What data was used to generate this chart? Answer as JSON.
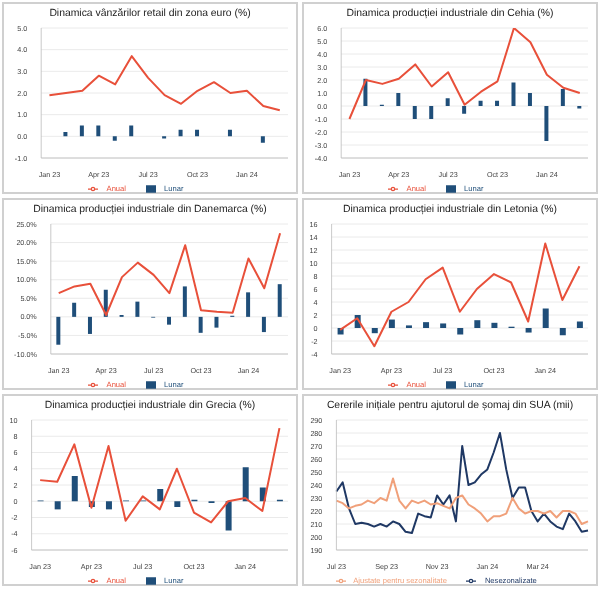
{
  "chart_data": [
    {
      "type": "bar",
      "title": "Dinamica vânzărilor retail din zona euro (%)",
      "categories": [
        "Jan 23",
        null,
        null,
        "Apr 23",
        null,
        null,
        "Jul 23",
        null,
        null,
        "Oct 23",
        null,
        null,
        "Jan 24",
        null,
        null
      ],
      "ylim": [
        -1,
        5
      ],
      "yticks": [
        {
          "value": -1,
          "label": "-1.0"
        },
        {
          "value": 0,
          "label": "0.0"
        },
        {
          "value": 1,
          "label": "1.0"
        },
        {
          "value": 2,
          "label": "2.0"
        },
        {
          "value": 3,
          "label": "3.0"
        },
        {
          "value": 4,
          "label": "4.0"
        },
        {
          "value": 5,
          "label": "5.0"
        }
      ],
      "grid": "y",
      "legend": "bottom",
      "series": [
        {
          "name": "Lunar",
          "type": "bar",
          "color": "#1f4e79",
          "values": [
            0.0,
            0.2,
            0.5,
            0.5,
            -0.2,
            0.5,
            0.0,
            -0.1,
            0.3,
            0.3,
            0.0,
            0.3,
            0.0,
            -0.3,
            0.0
          ]
        },
        {
          "name": "Anual",
          "type": "line",
          "color": "#e8503a",
          "values": [
            1.9,
            2.0,
            2.1,
            2.8,
            2.4,
            3.7,
            2.7,
            1.9,
            1.5,
            2.1,
            2.5,
            2.0,
            2.1,
            1.4,
            1.2
          ]
        }
      ]
    },
    {
      "type": "bar",
      "title": "Dinamica producției industriale din Cehia (%)",
      "categories": [
        "Jan 23",
        null,
        null,
        "Apr 23",
        null,
        null,
        "Jul 23",
        null,
        null,
        "Oct 23",
        null,
        null,
        "Jan 24",
        null,
        null
      ],
      "ylim": [
        -4,
        6
      ],
      "yticks": [
        {
          "value": -4,
          "label": "-4.0"
        },
        {
          "value": -3,
          "label": "-3.0"
        },
        {
          "value": -2,
          "label": "-2.0"
        },
        {
          "value": -1,
          "label": "-1.0"
        },
        {
          "value": 0,
          "label": "0.0"
        },
        {
          "value": 1,
          "label": "1.0"
        },
        {
          "value": 2,
          "label": "2.0"
        },
        {
          "value": 3,
          "label": "3.0"
        },
        {
          "value": 4,
          "label": "4.0"
        },
        {
          "value": 5,
          "label": "5.0"
        },
        {
          "value": 6,
          "label": "6.0"
        }
      ],
      "grid": "y",
      "legend": "bottom",
      "series": [
        {
          "name": "Lunar",
          "type": "bar",
          "color": "#1f4e79",
          "values": [
            null,
            2.1,
            0.1,
            1.0,
            -1.0,
            -1.0,
            0.6,
            -0.6,
            0.4,
            0.4,
            1.8,
            1.0,
            -2.7,
            1.3,
            -0.2
          ]
        },
        {
          "name": "Anual",
          "type": "line",
          "color": "#e8503a",
          "values": [
            -1.0,
            2.0,
            1.7,
            2.1,
            3.2,
            1.5,
            2.6,
            0.1,
            1.1,
            1.9,
            6.0,
            4.9,
            2.4,
            1.4,
            1.0
          ]
        }
      ]
    },
    {
      "type": "bar",
      "title": "Dinamica producției industriale din Danemarca (%)",
      "categories": [
        "Jan 23",
        null,
        null,
        "Apr 23",
        null,
        null,
        "Jul 23",
        null,
        null,
        "Oct 23",
        null,
        null,
        "Jan 24",
        null,
        null
      ],
      "ylim": [
        -10,
        25
      ],
      "yticks": [
        {
          "value": -10,
          "label": "-10.0%"
        },
        {
          "value": -5,
          "label": "-5.0%"
        },
        {
          "value": 0,
          "label": "0.0%"
        },
        {
          "value": 5,
          "label": "5.0%"
        },
        {
          "value": 10,
          "label": "10.0%"
        },
        {
          "value": 15,
          "label": "15.0%"
        },
        {
          "value": 20,
          "label": "20.0%"
        },
        {
          "value": 25,
          "label": "25.0%"
        }
      ],
      "grid": "y",
      "legend": "bottom",
      "series": [
        {
          "name": "Lunar",
          "type": "bar",
          "color": "#1f4e79",
          "values": [
            -7.5,
            3.8,
            -4.6,
            7.3,
            0.5,
            4.1,
            -0.2,
            -2.1,
            8.2,
            -4.3,
            -2.9,
            0.3,
            6.6,
            -4.1,
            8.8
          ]
        },
        {
          "name": "Anual",
          "type": "line",
          "color": "#e8503a",
          "values": [
            6.4,
            8.2,
            8.9,
            0.5,
            10.7,
            14.6,
            11.3,
            6.4,
            19.3,
            1.8,
            1.4,
            1.1,
            15.7,
            7.7,
            22.5
          ]
        }
      ]
    },
    {
      "type": "bar",
      "title": "Dinamica producției industriale din Letonia (%)",
      "categories": [
        "Jan 23",
        null,
        null,
        "Apr 23",
        null,
        null,
        "Jul 23",
        null,
        null,
        "Oct 23",
        null,
        null,
        "Jan 24",
        null,
        null
      ],
      "ylim": [
        -4,
        16
      ],
      "yticks": [
        -4,
        -2,
        0,
        2,
        4,
        6,
        8,
        10,
        12,
        14,
        16
      ],
      "grid": "y",
      "legend": "bottom",
      "series": [
        {
          "name": "Lunar",
          "type": "bar",
          "color": "#1f4e79",
          "values": [
            -1.0,
            2.0,
            -0.8,
            1.3,
            0.4,
            0.9,
            0.7,
            -1.0,
            1.2,
            0.8,
            0.2,
            -0.7,
            3.0,
            -1.1,
            1.0
          ]
        },
        {
          "name": "Anual",
          "type": "line",
          "color": "#e8503a",
          "values": [
            -0.3,
            1.5,
            -2.8,
            2.5,
            4.0,
            7.5,
            9.3,
            2.5,
            6.0,
            8.3,
            7.0,
            1.0,
            13.0,
            4.3,
            9.5
          ]
        }
      ]
    },
    {
      "type": "bar",
      "title": "Dinamica producției industriale din Grecia (%)",
      "categories": [
        "Jan 23",
        null,
        null,
        "Apr 23",
        null,
        null,
        "Jul 23",
        null,
        null,
        "Oct 23",
        null,
        null,
        "Jan 24",
        null,
        null
      ],
      "ylim": [
        -6,
        10
      ],
      "yticks": [
        -6,
        -4,
        -2,
        0,
        2,
        4,
        6,
        8,
        10
      ],
      "grid": "y",
      "legend": "bottom",
      "series": [
        {
          "name": "Lunar",
          "type": "bar",
          "color": "#1f4e79",
          "values": [
            0.1,
            -1.0,
            3.1,
            -0.7,
            -1.0,
            0.1,
            0.1,
            1.5,
            -0.7,
            0.2,
            -0.2,
            -3.6,
            4.2,
            1.7,
            0.2
          ]
        },
        {
          "name": "Anual",
          "type": "line",
          "color": "#e8503a",
          "values": [
            2.6,
            2.4,
            7.0,
            -0.8,
            6.8,
            -2.4,
            0.6,
            -1.0,
            4.0,
            -1.4,
            -2.6,
            0.0,
            0.4,
            -1.2,
            9.0
          ]
        }
      ]
    },
    {
      "type": "line",
      "title": "Cererile inițiale pentru ajutorul de șomaj din SUA (mii)",
      "categories": [
        "Jul 23",
        null,
        null,
        null,
        null,
        null,
        null,
        null,
        "Sep 23",
        null,
        null,
        null,
        null,
        null,
        null,
        null,
        "Nov 23",
        null,
        null,
        null,
        null,
        null,
        null,
        null,
        "Jan 24",
        null,
        null,
        null,
        null,
        null,
        null,
        null,
        "Mar 24",
        null,
        null,
        null,
        null,
        null,
        null,
        null,
        null
      ],
      "ylim": [
        190,
        290
      ],
      "yticks": [
        190,
        200,
        210,
        220,
        230,
        240,
        250,
        260,
        270,
        280,
        290
      ],
      "grid": "y",
      "legend": "bottom",
      "series": [
        {
          "name": "Nesezonalizate",
          "color": "#1f3864",
          "values": [
            235,
            242,
            222,
            210,
            211,
            210,
            208,
            210,
            208,
            212,
            210,
            204,
            203,
            218,
            216,
            215,
            232,
            225,
            232,
            212,
            270,
            240,
            242,
            248,
            252,
            265,
            280,
            252,
            230,
            238,
            238,
            220,
            212,
            218,
            212,
            208,
            206,
            218,
            212,
            204,
            205
          ]
        },
        {
          "name": "Ajustate pentru sezonalitate",
          "color": "#f0a07a",
          "values": [
            228,
            226,
            222,
            224,
            225,
            228,
            226,
            230,
            228,
            245,
            228,
            222,
            228,
            226,
            228,
            225,
            226,
            224,
            222,
            230,
            232,
            225,
            222,
            218,
            212,
            216,
            216,
            218,
            230,
            222,
            218,
            220,
            220,
            218,
            220,
            215,
            220,
            220,
            218,
            210,
            212
          ]
        }
      ]
    }
  ]
}
